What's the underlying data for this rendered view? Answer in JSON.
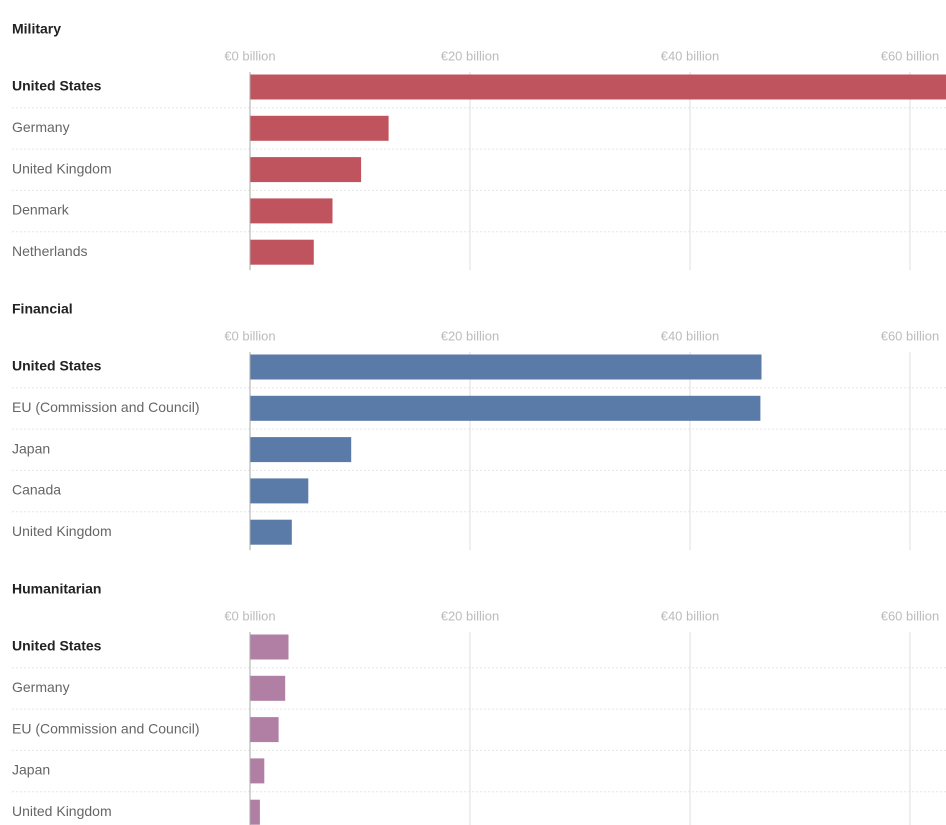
{
  "chart_data": [
    {
      "type": "bar",
      "orientation": "horizontal",
      "title": "Military",
      "color": "#c0545e",
      "categories": [
        "United States",
        "Germany",
        "United Kingdom",
        "Denmark",
        "Netherlands"
      ],
      "values": [
        64,
        12.6,
        10.1,
        7.5,
        5.8
      ],
      "xlim": [
        0,
        63.3
      ],
      "xticks": [
        {
          "value": 0,
          "label": "€0 billion"
        },
        {
          "value": 20,
          "label": "€20 billion"
        },
        {
          "value": 40,
          "label": "€40 billion"
        },
        {
          "value": 60,
          "label": "€60 billion"
        }
      ],
      "grid": true
    },
    {
      "type": "bar",
      "orientation": "horizontal",
      "title": "Financial",
      "color": "#5a7aa8",
      "categories": [
        "United States",
        "EU (Commission and Council)",
        "Japan",
        "Canada",
        "United Kingdom"
      ],
      "values": [
        46.5,
        46.4,
        9.2,
        5.3,
        3.8
      ],
      "xlim": [
        0,
        63.3
      ],
      "xticks": [
        {
          "value": 0,
          "label": "€0 billion"
        },
        {
          "value": 20,
          "label": "€20 billion"
        },
        {
          "value": 40,
          "label": "€40 billion"
        },
        {
          "value": 60,
          "label": "€60 billion"
        }
      ],
      "grid": true
    },
    {
      "type": "bar",
      "orientation": "horizontal",
      "title": "Humanitarian",
      "color": "#b07fa3",
      "categories": [
        "United States",
        "Germany",
        "EU (Commission and Council)",
        "Japan",
        "United Kingdom"
      ],
      "values": [
        3.5,
        3.2,
        2.6,
        1.3,
        0.9
      ],
      "xlim": [
        0,
        63.3
      ],
      "xticks": [
        {
          "value": 0,
          "label": "€0 billion"
        },
        {
          "value": 20,
          "label": "€20 billion"
        },
        {
          "value": 40,
          "label": "€40 billion"
        },
        {
          "value": 60,
          "label": "€60 billion"
        }
      ],
      "grid": true
    }
  ]
}
